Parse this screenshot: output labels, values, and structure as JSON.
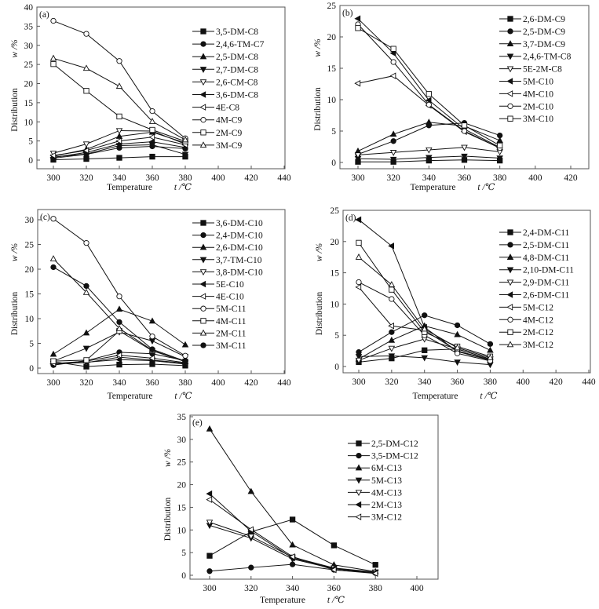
{
  "chart_data": [
    {
      "id": "a",
      "type": "line",
      "panel_label": "(a)",
      "xlabel": "Temperature",
      "xunit": "t /℃",
      "ylabel": "Distribution",
      "yunit": "w /%",
      "xlim": [
        290,
        440
      ],
      "ylim": [
        -2.5,
        40
      ],
      "xticks": [
        300,
        320,
        340,
        360,
        380,
        400,
        420,
        440
      ],
      "yticks": [
        0,
        5,
        10,
        15,
        20,
        25,
        30,
        35,
        40
      ],
      "legend_position": "right",
      "x": [
        300,
        320,
        340,
        360,
        380
      ],
      "series": [
        {
          "name": "3,5-DM-C8",
          "marker": "square-filled",
          "values": [
            0.1,
            0.3,
            0.6,
            0.9,
            0.9
          ]
        },
        {
          "name": "2,4,6-TM-C7",
          "marker": "circle-filled",
          "values": [
            0.5,
            1.5,
            3.2,
            3.6,
            3.0
          ]
        },
        {
          "name": "2,5-DM-C8",
          "marker": "triangle-up-filled",
          "values": [
            1.0,
            2.8,
            6.2,
            7.3,
            4.5
          ]
        },
        {
          "name": "2,7-DM-C8",
          "marker": "triangle-down-filled",
          "values": [
            0.8,
            1.6,
            3.8,
            4.0,
            1.5
          ]
        },
        {
          "name": "2,6-CM-C8",
          "marker": "triangle-down-open",
          "values": [
            1.8,
            4.2,
            7.7,
            7.6,
            4.2
          ]
        },
        {
          "name": "3,6-DM-C8",
          "marker": "triangle-left-filled",
          "values": [
            0.7,
            2.0,
            4.2,
            4.8,
            3.3
          ]
        },
        {
          "name": "4E-C8",
          "marker": "triangle-left-open",
          "values": [
            1.2,
            2.5,
            5.0,
            6.0,
            4.0
          ]
        },
        {
          "name": "4M-C9",
          "marker": "circle-open",
          "values": [
            36.4,
            33.0,
            25.9,
            12.8,
            5.7
          ]
        },
        {
          "name": "2M-C9",
          "marker": "square-open",
          "values": [
            25.1,
            18.1,
            11.4,
            7.9,
            4.9
          ]
        },
        {
          "name": "3M-C9",
          "marker": "triangle-up-open",
          "values": [
            26.6,
            24.0,
            19.3,
            10.1,
            5.3
          ]
        }
      ]
    },
    {
      "id": "b",
      "type": "line",
      "panel_label": "(b)",
      "xlabel": "Temperature",
      "xunit": "t /℃",
      "ylabel": "Distribution",
      "yunit": "w /%",
      "xlim": [
        290,
        430
      ],
      "ylim": [
        -1,
        25
      ],
      "xticks": [
        300,
        320,
        340,
        360,
        380,
        400,
        420
      ],
      "yticks": [
        0,
        5,
        10,
        15,
        20,
        25
      ],
      "legend_position": "right",
      "x": [
        300,
        320,
        340,
        360,
        380
      ],
      "series": [
        {
          "name": "2,6-DM-C9",
          "marker": "square-filled",
          "values": [
            0.1,
            0.1,
            0.3,
            0.4,
            0.3
          ]
        },
        {
          "name": "2,5-DM-C9",
          "marker": "circle-filled",
          "values": [
            1.3,
            3.4,
            5.9,
            6.3,
            4.3
          ]
        },
        {
          "name": "3,7-DM-C9",
          "marker": "triangle-up-filled",
          "values": [
            1.8,
            4.5,
            6.4,
            5.8,
            3.5
          ]
        },
        {
          "name": "2,4,6-TM-C8",
          "marker": "triangle-down-filled",
          "values": [
            0.6,
            0.5,
            0.8,
            1.0,
            0.7
          ]
        },
        {
          "name": "5E-2M-C8",
          "marker": "triangle-down-open",
          "values": [
            1.2,
            1.6,
            2.0,
            2.4,
            1.7
          ]
        },
        {
          "name": "5M-C10",
          "marker": "triangle-left-filled",
          "values": [
            22.9,
            17.4,
            9.9,
            5.3,
            2.4
          ]
        },
        {
          "name": "4M-C10",
          "marker": "triangle-left-open",
          "values": [
            12.6,
            13.8,
            9.1,
            4.9,
            2.3
          ]
        },
        {
          "name": "2M-C10",
          "marker": "circle-open",
          "values": [
            22.0,
            16.0,
            9.2,
            5.0,
            2.3
          ]
        },
        {
          "name": "3M-C10",
          "marker": "square-open",
          "values": [
            21.4,
            18.1,
            10.9,
            5.9,
            2.7
          ]
        }
      ]
    },
    {
      "id": "c",
      "type": "line",
      "panel_label": "(c)",
      "xlabel": "Temperature",
      "xunit": "t /℃",
      "ylabel": "Distribution",
      "yunit": "w /%",
      "xlim": [
        290,
        440
      ],
      "ylim": [
        -1,
        32
      ],
      "xticks": [
        300,
        320,
        340,
        360,
        380,
        400,
        420,
        440
      ],
      "yticks": [
        0,
        5,
        10,
        15,
        20,
        25,
        30
      ],
      "legend_position": "right",
      "x": [
        300,
        320,
        340,
        360,
        380
      ],
      "series": [
        {
          "name": "3,6-DM-C10",
          "marker": "square-filled",
          "values": [
            1.3,
            0.3,
            0.7,
            0.8,
            0.5
          ]
        },
        {
          "name": "2,4-DM-C10",
          "marker": "circle-filled",
          "values": [
            0.6,
            1.5,
            3.2,
            2.9,
            1.5
          ]
        },
        {
          "name": "2,6-DM-C10",
          "marker": "triangle-up-filled",
          "values": [
            2.8,
            7.1,
            11.9,
            9.5,
            4.7
          ]
        },
        {
          "name": "3,7-TM-C10",
          "marker": "triangle-down-filled",
          "values": [
            1.4,
            4.0,
            7.3,
            5.5,
            2.3
          ]
        },
        {
          "name": "3,8-DM-C10",
          "marker": "triangle-down-open",
          "values": [
            0.9,
            1.1,
            2.2,
            1.6,
            1.0
          ]
        },
        {
          "name": "5E-C10",
          "marker": "triangle-left-filled",
          "values": [
            0.8,
            1.2,
            1.7,
            1.5,
            0.8
          ]
        },
        {
          "name": "4E-C10",
          "marker": "triangle-left-open",
          "values": [
            0.9,
            1.4,
            2.6,
            2.0,
            1.1
          ]
        },
        {
          "name": "5M-C11",
          "marker": "circle-open",
          "values": [
            30.2,
            25.3,
            14.5,
            6.4,
            2.5
          ]
        },
        {
          "name": "4M-C11",
          "marker": "square-open",
          "values": [
            1.4,
            1.6,
            7.5,
            3.5,
            1.3
          ]
        },
        {
          "name": "2M-C11",
          "marker": "triangle-up-open",
          "values": [
            22.1,
            15.3,
            8.0,
            3.6,
            1.3
          ]
        },
        {
          "name": "3M-C11",
          "marker": "circle-filled",
          "values": [
            20.4,
            16.6,
            9.3,
            3.8,
            1.4
          ]
        }
      ]
    },
    {
      "id": "d",
      "type": "line",
      "panel_label": "(d)",
      "xlabel": "Temperature",
      "xunit": "t /℃",
      "ylabel": "Distribution",
      "yunit": "w /%",
      "xlim": [
        290,
        440
      ],
      "ylim": [
        -1,
        25
      ],
      "xticks": [
        300,
        320,
        340,
        360,
        380,
        400,
        420,
        440
      ],
      "yticks": [
        0,
        5,
        10,
        15,
        20,
        25
      ],
      "legend_position": "right",
      "x": [
        300,
        320,
        340,
        360,
        380
      ],
      "series": [
        {
          "name": "2,4-DM-C11",
          "marker": "square-filled",
          "values": [
            0.7,
            1.3,
            2.6,
            2.8,
            1.2
          ]
        },
        {
          "name": "2,5-DM-C11",
          "marker": "circle-filled",
          "values": [
            2.3,
            5.5,
            8.2,
            6.6,
            3.6
          ]
        },
        {
          "name": "4,8-DM-C11",
          "marker": "triangle-up-filled",
          "values": [
            1.2,
            4.2,
            6.5,
            5.1,
            2.6
          ]
        },
        {
          "name": "2,10-DM-C11",
          "marker": "triangle-down-filled",
          "values": [
            1.6,
            1.7,
            1.4,
            0.7,
            0.3
          ]
        },
        {
          "name": "2,9-DM-C11",
          "marker": "triangle-down-open",
          "values": [
            1.0,
            2.9,
            4.4,
            2.8,
            1.2
          ]
        },
        {
          "name": "2,6-DM-C11",
          "marker": "triangle-left-filled",
          "values": [
            23.5,
            19.3,
            6.3,
            2.4,
            1.0
          ]
        },
        {
          "name": "5M-C12",
          "marker": "triangle-left-open",
          "values": [
            12.7,
            6.5,
            5.8,
            2.5,
            1.1
          ]
        },
        {
          "name": "4M-C12",
          "marker": "circle-open",
          "values": [
            13.5,
            10.8,
            5.0,
            2.1,
            0.9
          ]
        },
        {
          "name": "2M-C12",
          "marker": "square-open",
          "values": [
            19.8,
            12.3,
            5.5,
            3.2,
            1.6
          ]
        },
        {
          "name": "3M-C12",
          "marker": "triangle-up-open",
          "values": [
            17.5,
            13.1,
            6.0,
            3.0,
            1.4
          ]
        }
      ]
    },
    {
      "id": "e",
      "type": "line",
      "panel_label": "(e)",
      "xlabel": "Temperature",
      "xunit": "t /℃",
      "ylabel": "Distribution",
      "yunit": "w /%",
      "xlim": [
        285,
        410
      ],
      "ylim": [
        -1,
        35
      ],
      "xticks": [
        300,
        320,
        340,
        360,
        380,
        400
      ],
      "yticks": [
        0,
        5,
        10,
        15,
        20,
        25,
        30,
        35
      ],
      "legend_position": "right",
      "x": [
        300,
        320,
        340,
        360,
        380
      ],
      "series": [
        {
          "name": "2,5-DM-C12",
          "marker": "square-filled",
          "values": [
            4.3,
            9.6,
            12.3,
            6.6,
            2.3
          ]
        },
        {
          "name": "3,5-DM-C12",
          "marker": "circle-filled",
          "values": [
            0.9,
            1.7,
            2.4,
            1.2,
            0.5
          ]
        },
        {
          "name": "6M-C13",
          "marker": "triangle-up-filled",
          "values": [
            32.3,
            18.5,
            6.7,
            2.3,
            0.8
          ]
        },
        {
          "name": "5M-C13",
          "marker": "triangle-down-filled",
          "values": [
            11.0,
            8.2,
            3.6,
            1.4,
            0.6
          ]
        },
        {
          "name": "4M-C13",
          "marker": "triangle-down-open",
          "values": [
            11.7,
            8.6,
            4.0,
            1.6,
            0.7
          ]
        },
        {
          "name": "2M-C13",
          "marker": "triangle-left-filled",
          "values": [
            18.0,
            9.7,
            3.8,
            1.5,
            0.6
          ]
        },
        {
          "name": "3M-C12",
          "marker": "triangle-left-open",
          "values": [
            16.7,
            10.1,
            4.1,
            1.2,
            0.4
          ]
        }
      ]
    }
  ]
}
